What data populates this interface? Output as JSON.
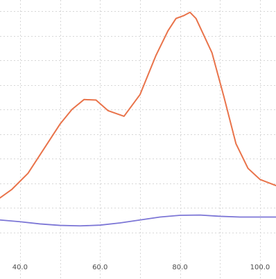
{
  "chart_data": {
    "type": "line",
    "title": "",
    "xlabel": "",
    "ylabel": "",
    "grid": true,
    "legend": "none",
    "xlim": [
      35,
      104
    ],
    "ylim": [
      0,
      100
    ],
    "x_ticks": [
      {
        "value": 40,
        "label": "40.0"
      },
      {
        "value": 60,
        "label": "60.0"
      },
      {
        "value": 80,
        "label": "80.0"
      },
      {
        "value": 100,
        "label": "100.0"
      }
    ],
    "x_minor_grid": [
      50,
      70,
      90
    ],
    "y_grid": [
      10,
      20,
      30,
      40,
      50,
      60,
      70,
      80,
      90,
      100
    ],
    "series": [
      {
        "color": "#e9734a",
        "stroke_width": 2,
        "points": [
          [
            35,
            24
          ],
          [
            38,
            27.5
          ],
          [
            42,
            34
          ],
          [
            46,
            44
          ],
          [
            50,
            54
          ],
          [
            53,
            60
          ],
          [
            56,
            64
          ],
          [
            59,
            63.8
          ],
          [
            62,
            59.5
          ],
          [
            66,
            57.2
          ],
          [
            70,
            66
          ],
          [
            74,
            82
          ],
          [
            77,
            92
          ],
          [
            79,
            97
          ],
          [
            81,
            98.2
          ],
          [
            82.5,
            99.5
          ],
          [
            84,
            97
          ],
          [
            88,
            83
          ],
          [
            91,
            65
          ],
          [
            94,
            46
          ],
          [
            97,
            36
          ],
          [
            100,
            31.5
          ],
          [
            104,
            29
          ]
        ]
      },
      {
        "color": "#7c76d6",
        "stroke_width": 1.8,
        "points": [
          [
            35,
            15
          ],
          [
            40,
            14.3
          ],
          [
            45,
            13.4
          ],
          [
            50,
            12.8
          ],
          [
            55,
            12.6
          ],
          [
            60,
            12.9
          ],
          [
            65,
            13.8
          ],
          [
            70,
            15.0
          ],
          [
            75,
            16.2
          ],
          [
            80,
            16.9
          ],
          [
            85,
            17.0
          ],
          [
            90,
            16.5
          ],
          [
            95,
            16.2
          ],
          [
            100,
            16.2
          ],
          [
            104,
            16.2
          ]
        ]
      }
    ]
  }
}
